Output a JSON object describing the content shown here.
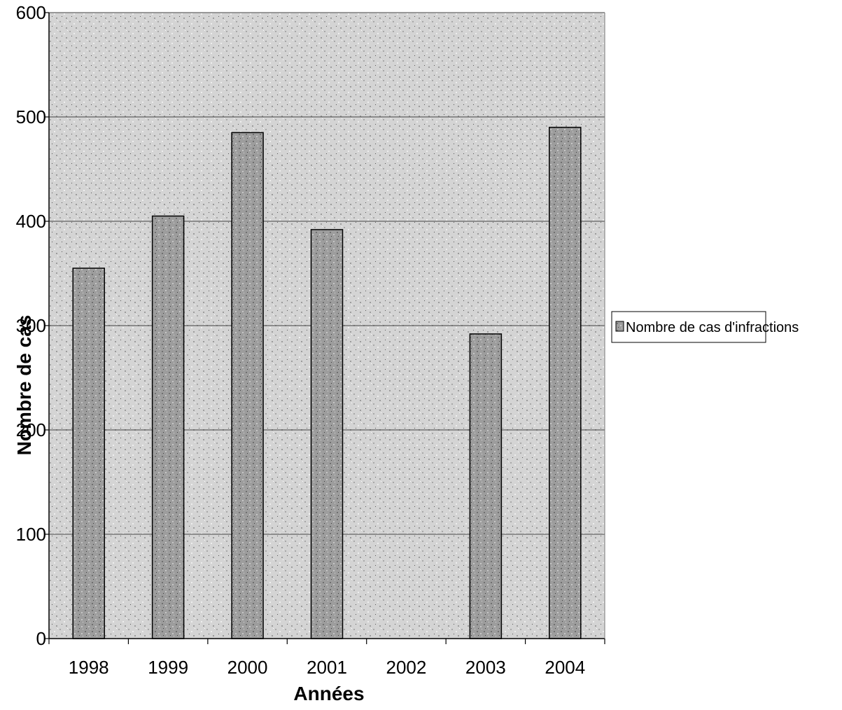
{
  "chart_data": {
    "type": "bar",
    "categories": [
      "1998",
      "1999",
      "2000",
      "2001",
      "2002",
      "2003",
      "2004"
    ],
    "series": [
      {
        "name": "Nombre de cas d'infractions",
        "values": [
          355,
          405,
          485,
          392,
          0,
          292,
          490
        ]
      }
    ],
    "xlabel": "Années",
    "ylabel": "Nombre de cas",
    "ylim": [
      0,
      600
    ],
    "yticks": [
      0,
      100,
      200,
      300,
      400,
      500,
      600
    ],
    "grid": true,
    "legend_position": "right",
    "colors": {
      "plot_bg": "#d2d2d2",
      "bar_fill": "#9a9a9a",
      "grid": "#444444",
      "bar_stroke": "#000000"
    }
  }
}
